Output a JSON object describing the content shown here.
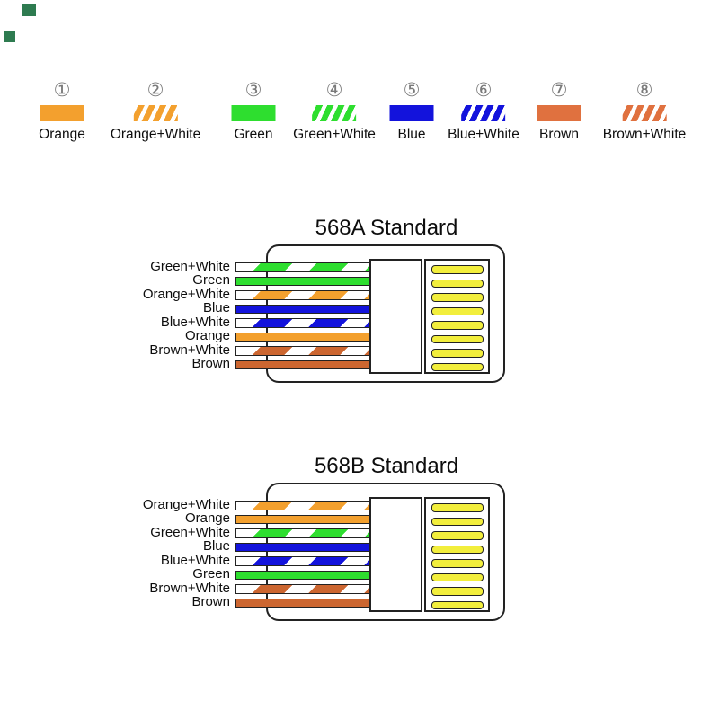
{
  "colors": {
    "orange": "#F3A02E",
    "green": "#2EDE2F",
    "blue": "#1313DC",
    "brown": "#CC6630",
    "brown_legend": "#E0713F",
    "pin_yellow": "#F2EE3C",
    "outline": "#222222",
    "corner_mark": "#2E7B50",
    "number_gray": "#7a7a7a"
  },
  "decor": {
    "corner_marks": [
      {
        "name": "corner-mark-1",
        "color": "#2E7B50"
      },
      {
        "name": "corner-mark-2",
        "color": "#2E7B50"
      }
    ]
  },
  "legend": {
    "items": [
      {
        "number": "①",
        "label": "Orange",
        "color_key": "orange",
        "style": "solid"
      },
      {
        "number": "②",
        "label": "Orange+White",
        "color_key": "orange",
        "style": "striped"
      },
      {
        "number": "③",
        "label": "Green",
        "color_key": "green",
        "style": "solid"
      },
      {
        "number": "④",
        "label": "Green+White",
        "color_key": "green",
        "style": "striped"
      },
      {
        "number": "⑤",
        "label": "Blue",
        "color_key": "blue",
        "style": "solid"
      },
      {
        "number": "⑥",
        "label": "Blue+White",
        "color_key": "blue",
        "style": "striped"
      },
      {
        "number": "⑦",
        "label": "Brown",
        "color_key": "brown_legend",
        "style": "solid"
      },
      {
        "number": "⑧",
        "label": "Brown+White",
        "color_key": "brown_legend",
        "style": "striped"
      }
    ]
  },
  "diagrams": [
    {
      "title": "568A Standard",
      "pin_count": 8,
      "wires": [
        {
          "label": "Green+White",
          "color_key": "green",
          "style": "striped"
        },
        {
          "label": "Green",
          "color_key": "green",
          "style": "solid"
        },
        {
          "label": "Orange+White",
          "color_key": "orange",
          "style": "striped"
        },
        {
          "label": "Blue",
          "color_key": "blue",
          "style": "solid"
        },
        {
          "label": "Blue+White",
          "color_key": "blue",
          "style": "striped"
        },
        {
          "label": "Orange",
          "color_key": "orange",
          "style": "solid"
        },
        {
          "label": "Brown+White",
          "color_key": "brown",
          "style": "striped"
        },
        {
          "label": "Brown",
          "color_key": "brown",
          "style": "solid"
        }
      ]
    },
    {
      "title": "568B Standard",
      "pin_count": 8,
      "wires": [
        {
          "label": "Orange+White",
          "color_key": "orange",
          "style": "striped"
        },
        {
          "label": "Orange",
          "color_key": "orange",
          "style": "solid"
        },
        {
          "label": "Green+White",
          "color_key": "green",
          "style": "striped"
        },
        {
          "label": "Blue",
          "color_key": "blue",
          "style": "solid"
        },
        {
          "label": "Blue+White",
          "color_key": "blue",
          "style": "striped"
        },
        {
          "label": "Green",
          "color_key": "green",
          "style": "solid"
        },
        {
          "label": "Brown+White",
          "color_key": "brown",
          "style": "striped"
        },
        {
          "label": "Brown",
          "color_key": "brown",
          "style": "solid"
        }
      ]
    }
  ]
}
